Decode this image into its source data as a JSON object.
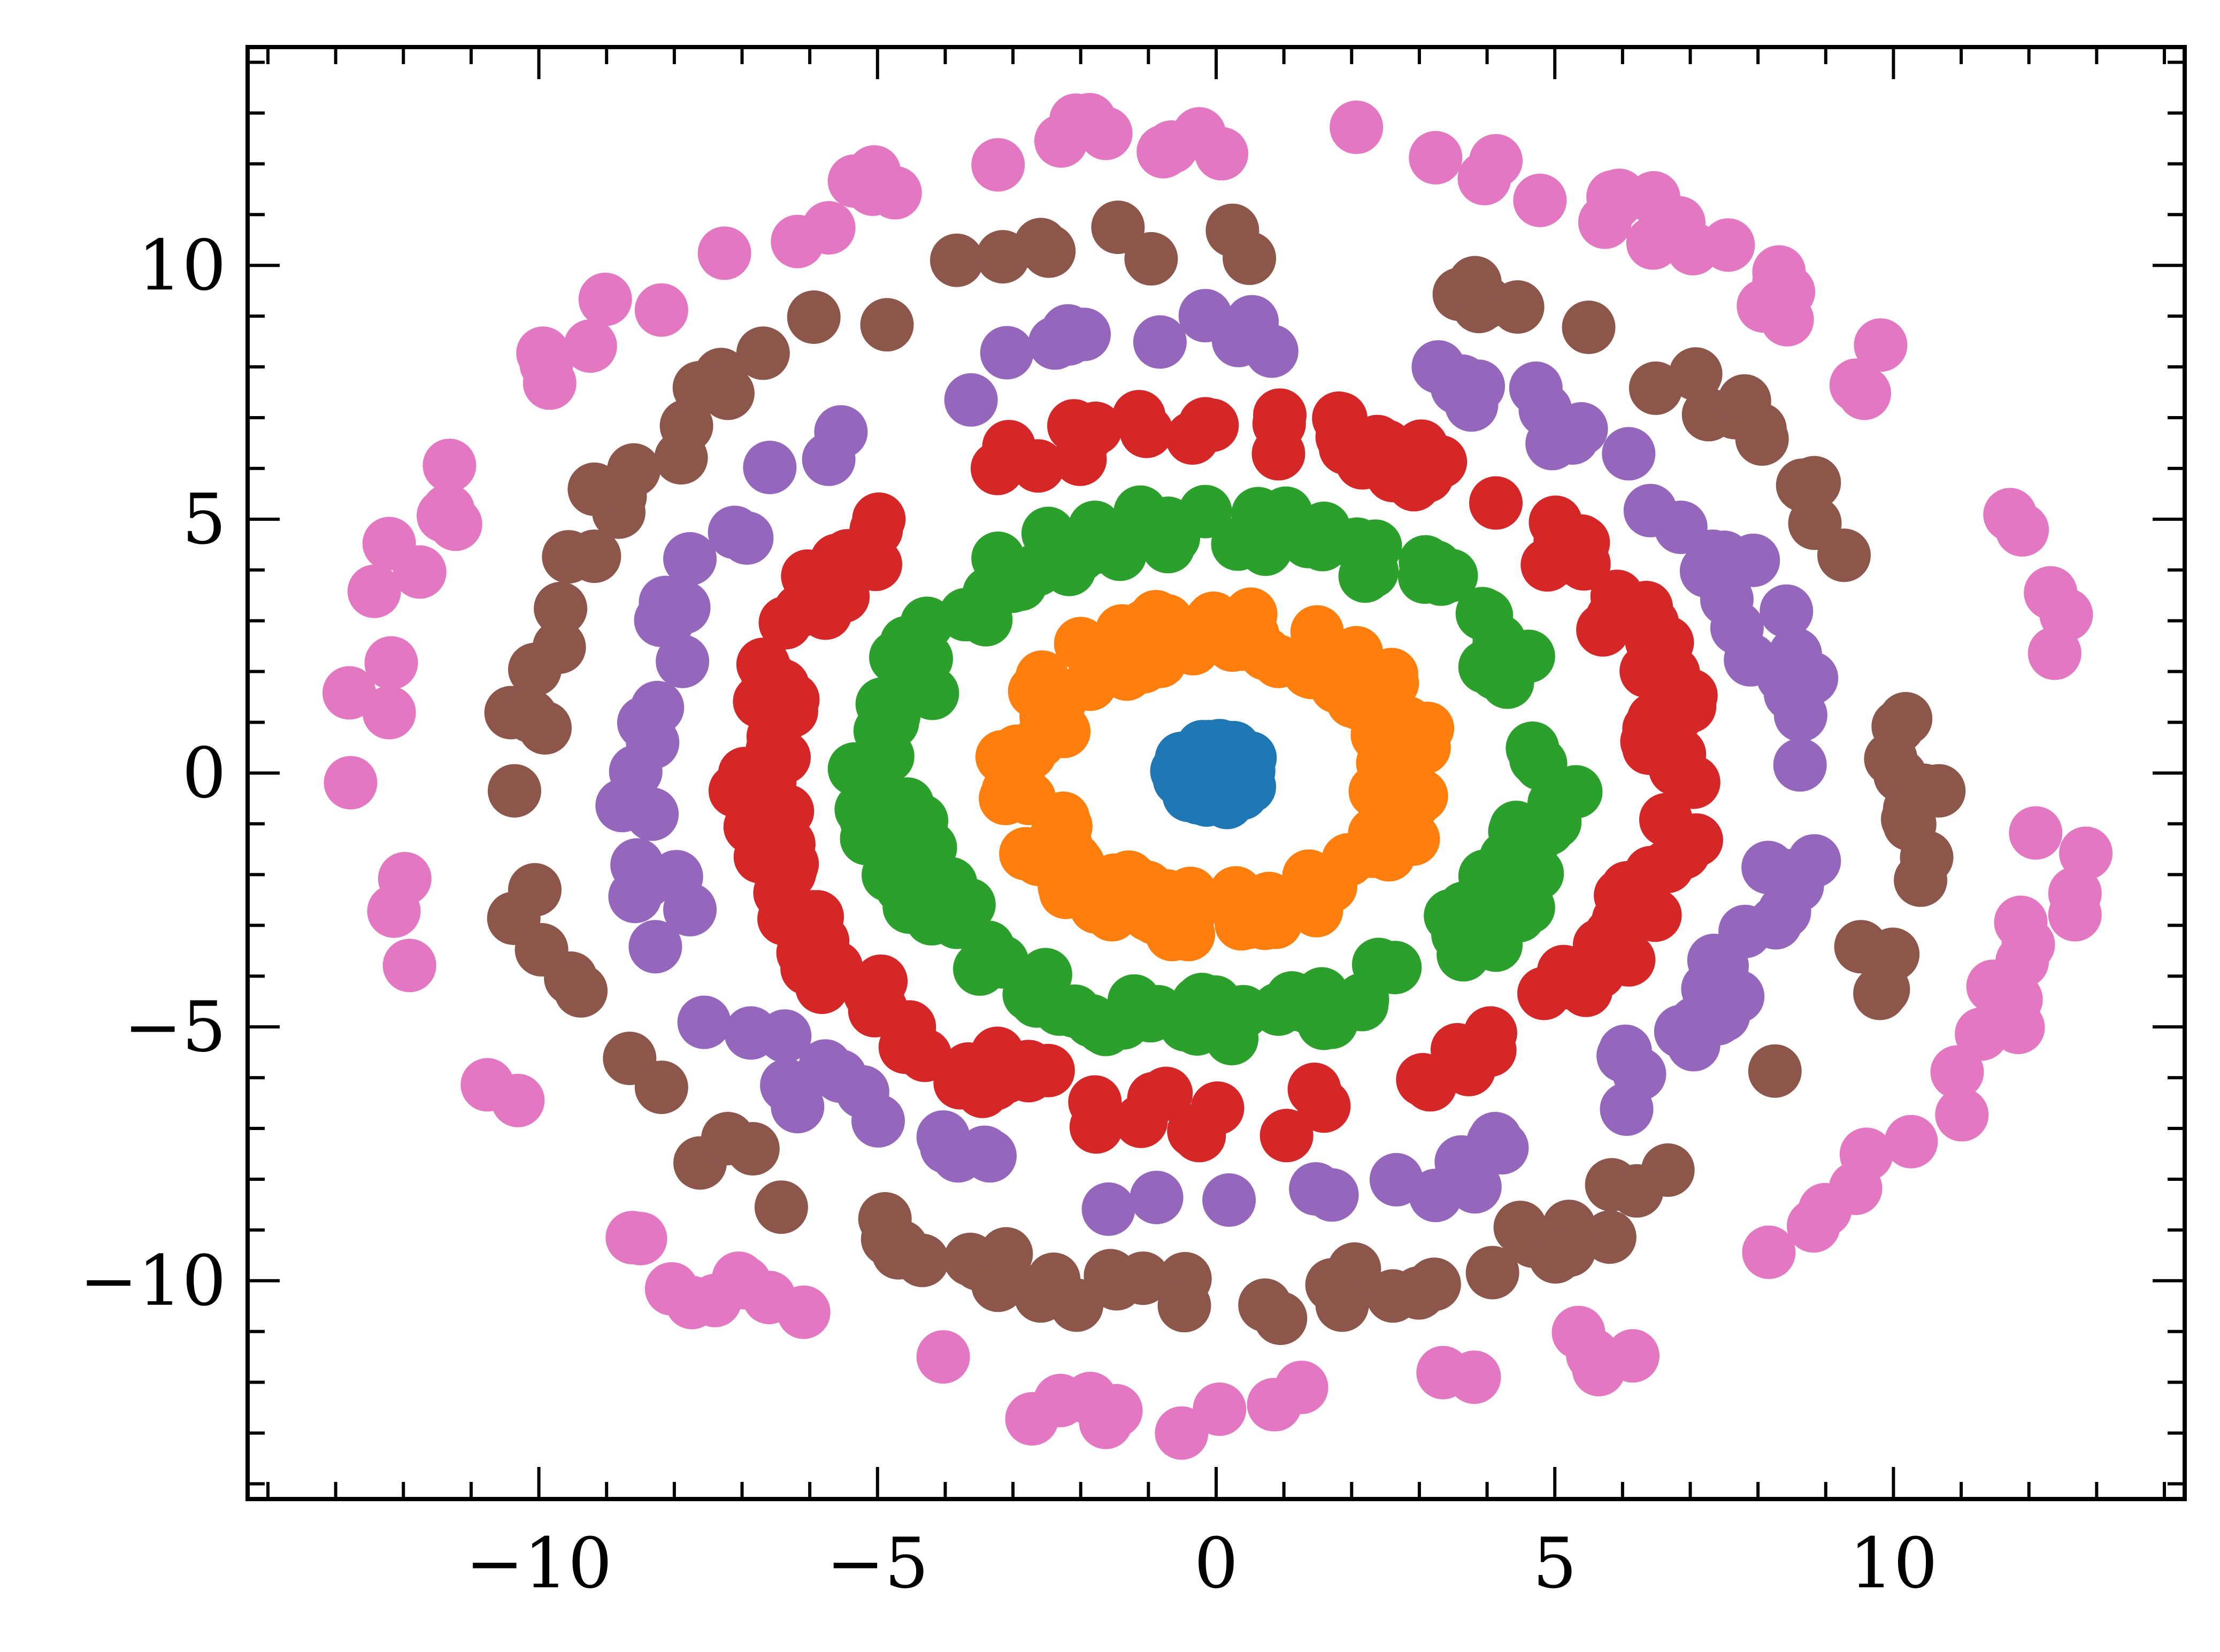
{
  "chart_data": {
    "type": "scatter",
    "title": "",
    "xlabel": "",
    "ylabel": "",
    "xlim": [
      -14.3,
      14.3
    ],
    "ylim": [
      -14.3,
      14.3
    ],
    "xticks": [
      -10,
      -5,
      0,
      5,
      10
    ],
    "yticks": [
      -10,
      -5,
      0,
      5,
      10
    ],
    "xtick_labels": [
      "−10",
      "−5",
      "0",
      "5",
      "10"
    ],
    "ytick_labels": [
      "−10",
      "−5",
      "0",
      "5",
      "10"
    ],
    "minor_tick_step": 1,
    "grid": false,
    "legend": false,
    "series": [
      {
        "color": "#1f77b4",
        "radius": 0.6,
        "count": 60,
        "values": []
      },
      {
        "color": "#ff7f0e",
        "radius": 2.8,
        "count": 130,
        "values": []
      },
      {
        "color": "#2ca02c",
        "radius": 4.9,
        "count": 160,
        "values": []
      },
      {
        "color": "#d62728",
        "radius": 6.8,
        "count": 170,
        "values": []
      },
      {
        "color": "#9467bd",
        "radius": 8.6,
        "count": 110,
        "values": []
      },
      {
        "color": "#8c564b",
        "radius": 10.4,
        "count": 110,
        "values": []
      },
      {
        "color": "#e377c2",
        "radius": 12.6,
        "count": 110,
        "values": []
      }
    ]
  }
}
